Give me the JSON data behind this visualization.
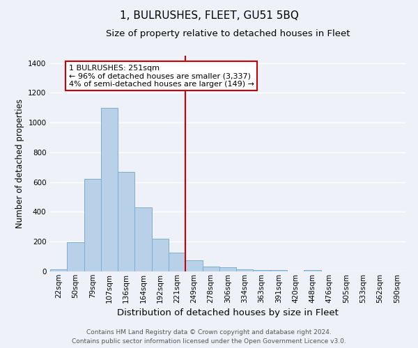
{
  "title": "1, BULRUSHES, FLEET, GU51 5BQ",
  "subtitle": "Size of property relative to detached houses in Fleet",
  "xlabel": "Distribution of detached houses by size in Fleet",
  "ylabel": "Number of detached properties",
  "bar_color": "#b8d0e8",
  "bar_edge_color": "#7aaed0",
  "background_color": "#eef2f8",
  "grid_color": "#ffffff",
  "bin_labels": [
    "22sqm",
    "50sqm",
    "79sqm",
    "107sqm",
    "136sqm",
    "164sqm",
    "192sqm",
    "221sqm",
    "249sqm",
    "278sqm",
    "306sqm",
    "334sqm",
    "363sqm",
    "391sqm",
    "420sqm",
    "448sqm",
    "476sqm",
    "505sqm",
    "533sqm",
    "562sqm",
    "590sqm"
  ],
  "bar_heights": [
    15,
    195,
    620,
    1100,
    670,
    430,
    220,
    125,
    75,
    35,
    28,
    15,
    10,
    8,
    0,
    10,
    0,
    0,
    0,
    0,
    0
  ],
  "vline_position": 8.0,
  "vline_color": "#cc0000",
  "ylim": [
    0,
    1450
  ],
  "yticks": [
    0,
    200,
    400,
    600,
    800,
    1000,
    1200,
    1400
  ],
  "annotation_title": "1 BULRUSHES: 251sqm",
  "annotation_line1": "← 96% of detached houses are smaller (3,337)",
  "annotation_line2": "4% of semi-detached houses are larger (149) →",
  "annotation_box_color": "#ffffff",
  "annotation_box_edge": "#cc0000",
  "footer_line1": "Contains HM Land Registry data © Crown copyright and database right 2024.",
  "footer_line2": "Contains public sector information licensed under the Open Government Licence v3.0.",
  "title_fontsize": 11,
  "subtitle_fontsize": 9.5,
  "xlabel_fontsize": 9.5,
  "ylabel_fontsize": 8.5,
  "tick_fontsize": 7.5,
  "annotation_fontsize": 8,
  "footer_fontsize": 6.5
}
